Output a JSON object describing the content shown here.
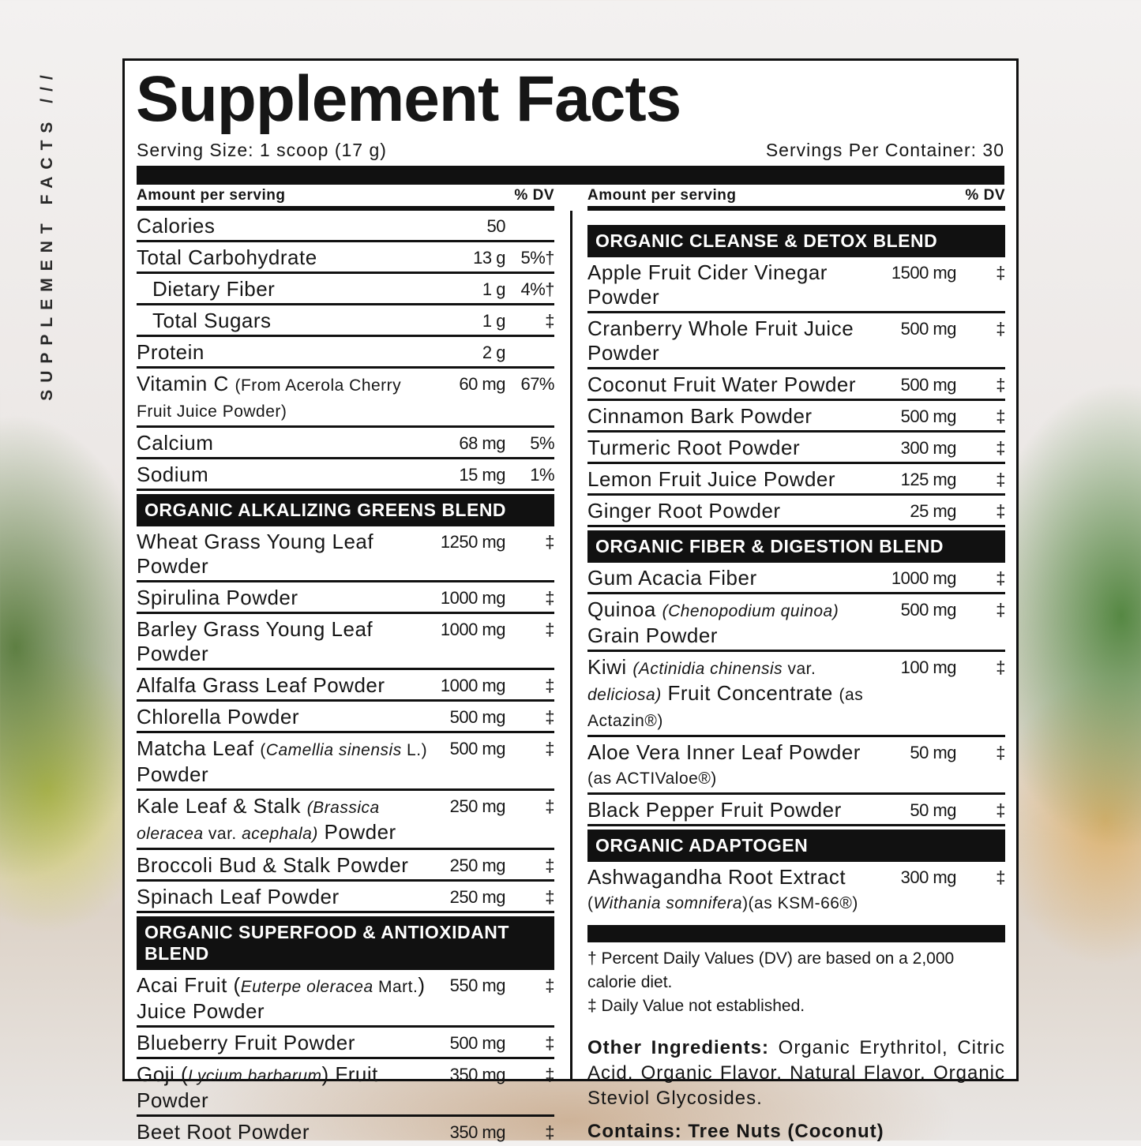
{
  "side_label": "SUPPLEMENT FACTS ///",
  "header": {
    "title": "Supplement Facts",
    "serving_size": "Serving Size: 1 scoop (17 g)",
    "servings_per_container": "Servings Per Container: 30"
  },
  "left_column": {
    "header": {
      "amount": "Amount per serving",
      "dv": "% DV"
    },
    "items": [
      {
        "name": [
          "Calories"
        ],
        "amount": "50"
      },
      {
        "name": [
          "Total Carbohydrate"
        ],
        "amount": "13 g",
        "dv": "5%†"
      },
      {
        "name": [
          "Dietary Fiber"
        ],
        "amount": "1 g",
        "dv": "4%†",
        "indent": true
      },
      {
        "name": [
          "Total Sugars"
        ],
        "amount": "1 g",
        "dv": "‡",
        "indent": true
      },
      {
        "name": [
          "Protein"
        ],
        "amount": "2 g"
      },
      {
        "name": [
          "Vitamin C ",
          {
            "text": "(From Acerola Cherry Fruit Juice Powder)",
            "style": "small"
          }
        ],
        "amount": "60 mg",
        "dv": "67%"
      },
      {
        "name": [
          "Calcium"
        ],
        "amount": "68 mg",
        "dv": "5%"
      },
      {
        "name": [
          "Sodium"
        ],
        "amount": "15 mg",
        "dv": "1%"
      },
      {
        "heading": "ORGANIC ALKALIZING GREENS BLEND"
      },
      {
        "name": [
          "Wheat Grass Young Leaf Powder"
        ],
        "amount": "1250 mg",
        "dv": "‡"
      },
      {
        "name": [
          "Spirulina Powder"
        ],
        "amount": "1000 mg",
        "dv": "‡"
      },
      {
        "name": [
          "Barley Grass Young Leaf Powder"
        ],
        "amount": "1000 mg",
        "dv": "‡"
      },
      {
        "name": [
          "Alfalfa Grass Leaf Powder"
        ],
        "amount": "1000 mg",
        "dv": "‡"
      },
      {
        "name": [
          "Chlorella Powder"
        ],
        "amount": "500 mg",
        "dv": "‡"
      },
      {
        "name": [
          "Matcha Leaf ",
          {
            "text": "(",
            "style": "small"
          },
          {
            "text": "Camellia sinensis",
            "style": "small-italic"
          },
          {
            "text": " L.)",
            "style": "small"
          },
          " Powder"
        ],
        "amount": "500 mg",
        "dv": "‡"
      },
      {
        "name": [
          "Kale Leaf & Stalk ",
          {
            "text": "(Brassica oleracea",
            "style": "small-italic"
          },
          {
            "text": " var. ",
            "style": "small"
          },
          {
            "text": "acephala)",
            "style": "small-italic"
          },
          " Powder"
        ],
        "amount": "250 mg",
        "dv": "‡"
      },
      {
        "name": [
          "Broccoli Bud & Stalk Powder"
        ],
        "amount": "250 mg",
        "dv": "‡"
      },
      {
        "name": [
          "Spinach Leaf Powder"
        ],
        "amount": "250 mg",
        "dv": "‡"
      },
      {
        "heading": "ORGANIC SUPERFOOD & ANTIOXIDANT BLEND"
      },
      {
        "name": [
          "Acai Fruit (",
          {
            "text": "Euterpe oleracea",
            "style": "small-italic"
          },
          {
            "text": " Mart.",
            "style": "small"
          },
          ") Juice Powder"
        ],
        "amount": "550 mg",
        "dv": "‡"
      },
      {
        "name": [
          "Blueberry Fruit Powder"
        ],
        "amount": "500 mg",
        "dv": "‡"
      },
      {
        "name": [
          "Goji (",
          {
            "text": "Lycium barbarum",
            "style": "small-italic"
          },
          ") Fruit Powder"
        ],
        "amount": "350 mg",
        "dv": "‡"
      },
      {
        "name": [
          "Beet Root Powder"
        ],
        "amount": "350 mg",
        "dv": "‡"
      }
    ]
  },
  "right_column": {
    "header": {
      "amount": "Amount per serving",
      "dv": "% DV"
    },
    "items": [
      {
        "heading": "ORGANIC CLEANSE & DETOX BLEND"
      },
      {
        "name": [
          "Apple Fruit Cider Vinegar Powder"
        ],
        "amount": "1500 mg",
        "dv": "‡"
      },
      {
        "name": [
          "Cranberry Whole Fruit Juice Powder"
        ],
        "amount": "500 mg",
        "dv": "‡"
      },
      {
        "name": [
          "Coconut Fruit Water Powder"
        ],
        "amount": "500 mg",
        "dv": "‡"
      },
      {
        "name": [
          "Cinnamon Bark Powder"
        ],
        "amount": "500 mg",
        "dv": "‡"
      },
      {
        "name": [
          "Turmeric Root Powder"
        ],
        "amount": "300 mg",
        "dv": "‡"
      },
      {
        "name": [
          "Lemon Fruit Juice Powder"
        ],
        "amount": "125 mg",
        "dv": "‡"
      },
      {
        "name": [
          "Ginger Root Powder"
        ],
        "amount": "25 mg",
        "dv": "‡"
      },
      {
        "heading": "ORGANIC FIBER & DIGESTION BLEND"
      },
      {
        "name": [
          "Gum Acacia Fiber"
        ],
        "amount": "1000 mg",
        "dv": "‡"
      },
      {
        "name": [
          "Quinoa ",
          {
            "text": "(Chenopodium quinoa)",
            "style": "small-italic"
          },
          {
            "text": " Grain Powder",
            "newline": true
          }
        ],
        "amount": "500 mg",
        "dv": "‡"
      },
      {
        "name": [
          "Kiwi ",
          {
            "text": "(Actinidia chinensis",
            "style": "small-italic"
          },
          {
            "text": " var.",
            "style": "small"
          },
          {
            "text": "deliciosa)",
            "style": "small-italic",
            "newline": true
          },
          " Fruit Concentrate ",
          {
            "text": "(as Actazin®)",
            "style": "small"
          }
        ],
        "amount": "100 mg",
        "dv": "‡"
      },
      {
        "name": [
          "Aloe Vera Inner Leaf Powder",
          {
            "text": "(as ACTIValoe®)",
            "style": "small",
            "newline": true
          }
        ],
        "amount": "50 mg",
        "dv": "‡"
      },
      {
        "name": [
          "Black Pepper Fruit Powder"
        ],
        "amount": "50 mg",
        "dv": "‡"
      },
      {
        "heading": "ORGANIC ADAPTOGEN"
      },
      {
        "name": [
          "Ashwagandha Root Extract",
          {
            "text": "(",
            "style": "small",
            "newline": true
          },
          {
            "text": "Withania somnifera",
            "style": "small-italic"
          },
          {
            "text": ")(as KSM-66®)",
            "style": "small"
          }
        ],
        "amount": "300 mg",
        "dv": "‡"
      }
    ],
    "notes": [
      "† Percent Daily Values (DV) are based on a 2,000 calorie diet.",
      "‡ Daily Value not established."
    ],
    "other_ingredients": {
      "label": "Other Ingredients:",
      "text": "Organic Erythritol, Citric Acid, Organic Flavor, Natural Flavor, Organic Steviol Glycosides."
    },
    "contains": "Contains: Tree Nuts (Coconut)"
  }
}
